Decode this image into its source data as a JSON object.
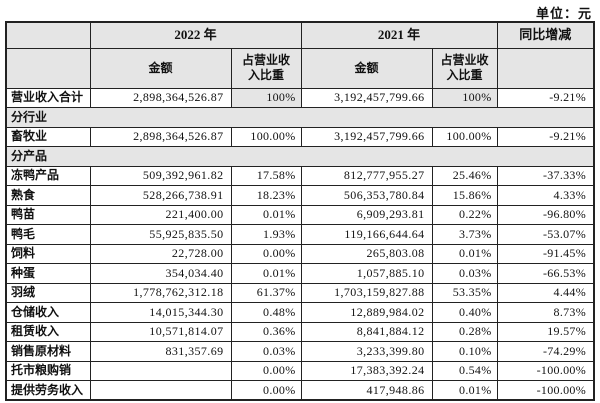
{
  "unit_label": "单位：元",
  "header": {
    "year_2022": "2022 年",
    "year_2021": "2021 年",
    "yoy": "同比增减",
    "amount": "金额",
    "pct_of_revenue": "占营业收\n入比重"
  },
  "rows": [
    {
      "type": "total",
      "label": "营业收入合计",
      "a22": "2,898,364,526.87",
      "p22": "100%",
      "a21": "3,192,457,799.66",
      "p21": "100%",
      "yoy": "-9.21%"
    },
    {
      "type": "section",
      "label": "分行业"
    },
    {
      "type": "data",
      "label": "畜牧业",
      "a22": "2,898,364,526.87",
      "p22": "100.00%",
      "a21": "3,192,457,799.66",
      "p21": "100.00%",
      "yoy": "-9.21%"
    },
    {
      "type": "section",
      "label": "分产品"
    },
    {
      "type": "data",
      "label": "冻鸭产品",
      "a22": "509,392,961.82",
      "p22": "17.58%",
      "a21": "812,777,955.27",
      "p21": "25.46%",
      "yoy": "-37.33%"
    },
    {
      "type": "data",
      "label": "熟食",
      "a22": "528,266,738.91",
      "p22": "18.23%",
      "a21": "506,353,780.84",
      "p21": "15.86%",
      "yoy": "4.33%"
    },
    {
      "type": "data",
      "label": "鸭苗",
      "a22": "221,400.00",
      "p22": "0.01%",
      "a21": "6,909,293.81",
      "p21": "0.22%",
      "yoy": "-96.80%"
    },
    {
      "type": "data",
      "label": "鸭毛",
      "a22": "55,925,835.50",
      "p22": "1.93%",
      "a21": "119,166,644.64",
      "p21": "3.73%",
      "yoy": "-53.07%"
    },
    {
      "type": "data",
      "label": "饲料",
      "a22": "22,728.00",
      "p22": "0.00%",
      "a21": "265,803.08",
      "p21": "0.01%",
      "yoy": "-91.45%"
    },
    {
      "type": "data",
      "label": "种蛋",
      "a22": "354,034.40",
      "p22": "0.01%",
      "a21": "1,057,885.10",
      "p21": "0.03%",
      "yoy": "-66.53%"
    },
    {
      "type": "data",
      "label": "羽绒",
      "a22": "1,778,762,312.18",
      "p22": "61.37%",
      "a21": "1,703,159,827.88",
      "p21": "53.35%",
      "yoy": "4.44%"
    },
    {
      "type": "data",
      "label": "仓储收入",
      "a22": "14,015,344.30",
      "p22": "0.48%",
      "a21": "12,889,984.02",
      "p21": "0.40%",
      "yoy": "8.73%"
    },
    {
      "type": "data",
      "label": "租赁收入",
      "a22": "10,571,814.07",
      "p22": "0.36%",
      "a21": "8,841,884.12",
      "p21": "0.28%",
      "yoy": "19.57%"
    },
    {
      "type": "data",
      "label": "销售原材料",
      "a22": "831,357.69",
      "p22": "0.03%",
      "a21": "3,233,399.80",
      "p21": "0.10%",
      "yoy": "-74.29%"
    },
    {
      "type": "data",
      "label": "托市粮购销",
      "a22": "",
      "p22": "0.00%",
      "a21": "17,383,392.24",
      "p21": "0.54%",
      "yoy": "-100.00%"
    },
    {
      "type": "data",
      "label": "提供劳务收入",
      "a22": "",
      "p22": "0.00%",
      "a21": "417,948.86",
      "p21": "0.01%",
      "yoy": "-100.00%"
    }
  ],
  "colors": {
    "header_bg": "#e5e5e5",
    "border": "#222222",
    "text": "#111111"
  }
}
